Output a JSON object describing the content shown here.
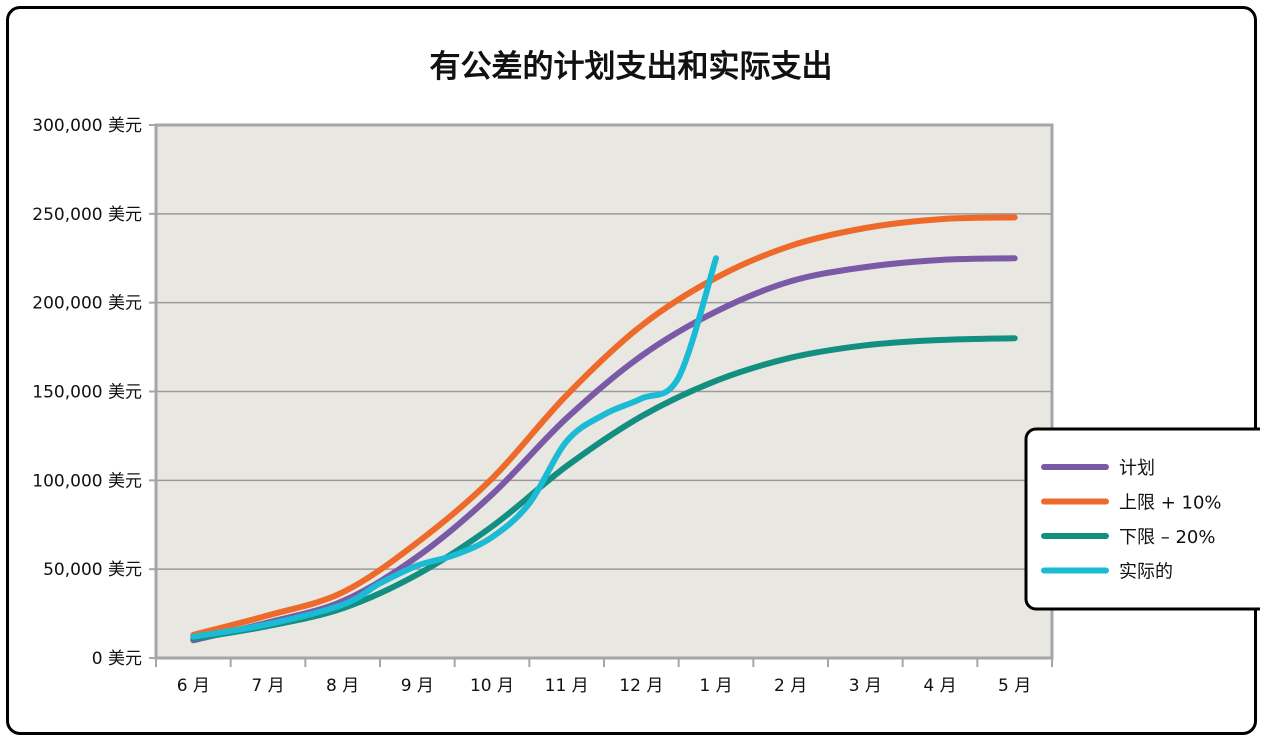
{
  "chart_data": {
    "type": "line",
    "title": "有公差的计划支出和实际支出",
    "categories": [
      "6 月",
      "7 月",
      "8 月",
      "9 月",
      "10 月",
      "11 月",
      "12 月",
      "1 月",
      "2 月",
      "3 月",
      "4 月",
      "5 月"
    ],
    "y_tick_labels": [
      "0 美元",
      "50,000 美元",
      "100,000 美元",
      "150,000 美元",
      "200,000 美元",
      "250,000 美元",
      "300,000 美元"
    ],
    "ylim": [
      0,
      300000
    ],
    "y_step": 50000,
    "grid": true,
    "legend_position": "right",
    "series": [
      {
        "name": "计划",
        "color": "#7a5aa6",
        "values": [
          10000,
          20000,
          32000,
          57000,
          92000,
          135000,
          170000,
          195000,
          212000,
          220000,
          224000,
          225000
        ]
      },
      {
        "name": "上限 + 10%",
        "color": "#ee6a2a",
        "values": [
          13000,
          24000,
          37000,
          65000,
          101000,
          148000,
          187000,
          214000,
          232000,
          242000,
          247000,
          248000
        ]
      },
      {
        "name": "下限 – 20%",
        "color": "#128f80",
        "values": [
          11000,
          18000,
          28000,
          47000,
          74000,
          108000,
          136000,
          156000,
          169000,
          176000,
          179000,
          180000
        ]
      },
      {
        "name": "实际的",
        "color": "#1bbbd5",
        "x": [
          0,
          1,
          2,
          2.5,
          3,
          3.5,
          4,
          4.5,
          5,
          5.5,
          6,
          6.5,
          7
        ],
        "values": [
          12000,
          19000,
          30000,
          42000,
          52000,
          58000,
          68000,
          87000,
          122000,
          137000,
          146000,
          158000,
          225000
        ]
      }
    ]
  }
}
